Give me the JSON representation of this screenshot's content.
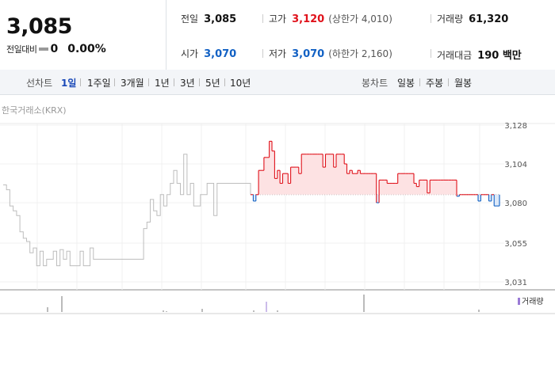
{
  "summary": {
    "price": "3,085",
    "change_label": "전일대비",
    "change_value": "0",
    "change_rate": "0.00%",
    "prev_close": {
      "label": "전일",
      "value": "3,085"
    },
    "high": {
      "label": "고가",
      "value": "3,120",
      "sub": "(상한가 4,010)"
    },
    "volume": {
      "label": "거래량",
      "value": "61,320"
    },
    "open": {
      "label": "시가",
      "value": "3,070"
    },
    "low": {
      "label": "저가",
      "value": "3,070",
      "sub": "(하한가 2,160)"
    },
    "amount": {
      "label": "거래대금",
      "value": "190 백만"
    }
  },
  "toolbar": {
    "line_label": "선차트",
    "line_periods": [
      "1일",
      "1주일",
      "3개월",
      "1년",
      "3년",
      "5년",
      "10년"
    ],
    "selected": "1일",
    "candle_label": "봉차트",
    "candle_periods": [
      "일봉",
      "주봉",
      "월봉"
    ]
  },
  "chart": {
    "source": "한국거래소(KRX)",
    "volume_label": "거래량",
    "y_ticks": [
      "3,128",
      "3,104",
      "3,080",
      "3,055",
      "3,031"
    ],
    "colors": {
      "up": "#e0121b",
      "down": "#1261c4",
      "prior": "#bdbdbd",
      "fill": "#fde2e3",
      "volume": "#9a7ad6"
    }
  },
  "chart_data": {
    "type": "line",
    "baseline": 3085,
    "ylim": [
      3031,
      3128
    ],
    "prior_series": [
      3091,
      3088,
      3078,
      3075,
      3072,
      3062,
      3058,
      3056,
      3049,
      3052,
      3041,
      3050,
      3041,
      3045,
      3045,
      3050,
      3041,
      3051,
      3045,
      3050,
      3041,
      3041,
      3041,
      3050,
      3041,
      3041,
      3052,
      3045,
      3045,
      3045,
      3045,
      3045,
      3045,
      3045,
      3045,
      3045,
      3045,
      3045,
      3045,
      3045,
      3045,
      3045,
      3064,
      3068,
      3082,
      3075,
      3072,
      3085,
      3078,
      3085,
      3092,
      3100,
      3092,
      3085,
      3110,
      3085,
      3092,
      3078,
      3078,
      3085,
      3085,
      3092,
      3092,
      3072,
      3092,
      3092,
      3092,
      3092,
      3092,
      3092,
      3092,
      3092,
      3092,
      3092,
      3085
    ],
    "today_series": [
      3085,
      3081,
      3085,
      3100,
      3100,
      3108,
      3108,
      3118,
      3112,
      3095,
      3100,
      3092,
      3098,
      3098,
      3092,
      3102,
      3102,
      3102,
      3098,
      3110,
      3110,
      3110,
      3110,
      3110,
      3110,
      3110,
      3110,
      3102,
      3110,
      3110,
      3110,
      3102,
      3110,
      3110,
      3110,
      3104,
      3098,
      3100,
      3098,
      3098,
      3100,
      3098,
      3098,
      3098,
      3098,
      3098,
      3098,
      3080,
      3094,
      3094,
      3094,
      3092,
      3092,
      3092,
      3092,
      3098,
      3098,
      3098,
      3098,
      3098,
      3098,
      3092,
      3090,
      3094,
      3094,
      3094,
      3086,
      3094,
      3094,
      3094,
      3094,
      3094,
      3094,
      3094,
      3094,
      3094,
      3094,
      3084,
      3085,
      3085,
      3085,
      3085,
      3085,
      3085,
      3085,
      3081,
      3085,
      3085,
      3085,
      3081,
      3085,
      3078,
      3078,
      3085
    ]
  }
}
